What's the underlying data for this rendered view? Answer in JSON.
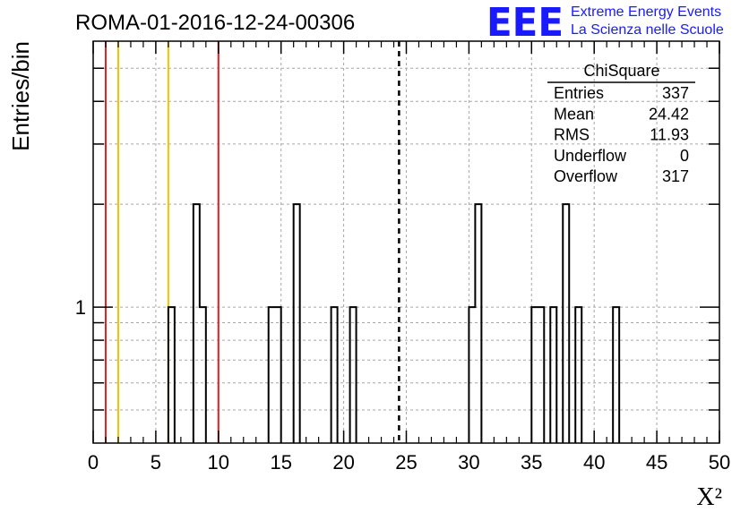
{
  "chart_data": {
    "type": "histogram",
    "title": "ROMA-01-2016-12-24-00306",
    "xlabel": "X²",
    "ylabel": "Entries/bin",
    "xlim": [
      0,
      50
    ],
    "ylog": true,
    "ylim": [
      0.4,
      6
    ],
    "x_ticks": [
      0,
      5,
      10,
      15,
      20,
      25,
      30,
      35,
      40,
      45,
      50
    ],
    "y_tick_labels": [
      {
        "value": 1,
        "label": "1"
      }
    ],
    "grid": true,
    "bin_width": 0.5,
    "bins": [
      {
        "x0": 6.0,
        "count": 1
      },
      {
        "x0": 8.0,
        "count": 2
      },
      {
        "x0": 8.5,
        "count": 1
      },
      {
        "x0": 14.0,
        "count": 1
      },
      {
        "x0": 14.5,
        "count": 1
      },
      {
        "x0": 16.0,
        "count": 2
      },
      {
        "x0": 19.0,
        "count": 1
      },
      {
        "x0": 20.5,
        "count": 1
      },
      {
        "x0": 30.0,
        "count": 1
      },
      {
        "x0": 30.5,
        "count": 2
      },
      {
        "x0": 35.0,
        "count": 1
      },
      {
        "x0": 35.5,
        "count": 1
      },
      {
        "x0": 36.5,
        "count": 1
      },
      {
        "x0": 37.5,
        "count": 2
      },
      {
        "x0": 38.5,
        "count": 1
      },
      {
        "x0": 41.5,
        "count": 1
      }
    ],
    "reference_lines": [
      {
        "x": 1,
        "color": "#dd2222",
        "style": "solid"
      },
      {
        "x": 2,
        "color": "#f2c200",
        "style": "solid"
      },
      {
        "x": 6,
        "color": "#f2c200",
        "style": "solid"
      },
      {
        "x": 10,
        "color": "#dd2222",
        "style": "solid"
      },
      {
        "x": 24.42,
        "color": "#000000",
        "style": "dashed"
      }
    ],
    "stats_box": {
      "title": "ChiSquare",
      "rows": [
        {
          "label": "Entries",
          "value": "337"
        },
        {
          "label": "Mean",
          "value": "24.42"
        },
        {
          "label": "RMS",
          "value": "11.93"
        },
        {
          "label": "Underflow",
          "value": "0"
        },
        {
          "label": "Overflow",
          "value": "317"
        }
      ]
    }
  },
  "logo": {
    "text": "EEE",
    "line1": "Extreme Energy Events",
    "line2": "La Scienza nelle Scuole",
    "color": "#1a1aff"
  }
}
